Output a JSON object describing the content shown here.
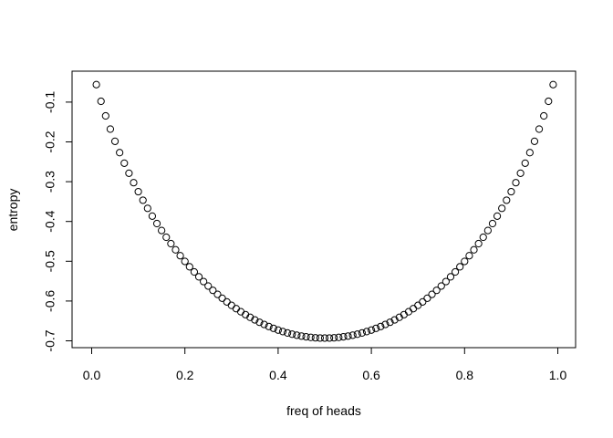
{
  "chart_data": {
    "type": "scatter",
    "title": "",
    "xlabel": "freq of heads",
    "ylabel": "entropy",
    "xlim": [
      0,
      1
    ],
    "ylim": [
      -0.7,
      -0.1
    ],
    "x_ticks": [
      "0.0",
      "0.2",
      "0.4",
      "0.6",
      "0.8",
      "1.0"
    ],
    "x_tick_values": [
      0,
      0.2,
      0.4,
      0.6,
      0.8,
      1.0
    ],
    "y_ticks": [
      "-0.7",
      "-0.6",
      "-0.5",
      "-0.4",
      "-0.3",
      "-0.2",
      "-0.1"
    ],
    "y_tick_values": [
      -0.7,
      -0.6,
      -0.5,
      -0.4,
      -0.3,
      -0.2,
      -0.1
    ],
    "grid": false,
    "marker": "open-circle",
    "point_color": "#000000",
    "series": [
      {
        "x": [
          0.01,
          0.02,
          0.03,
          0.04,
          0.05,
          0.06,
          0.07,
          0.08,
          0.09,
          0.1,
          0.11,
          0.12,
          0.13,
          0.14,
          0.15,
          0.16,
          0.17,
          0.18,
          0.19,
          0.2,
          0.21,
          0.22,
          0.23,
          0.24,
          0.25,
          0.26,
          0.27,
          0.28,
          0.29,
          0.3,
          0.31,
          0.32,
          0.33,
          0.34,
          0.35,
          0.36,
          0.37,
          0.38,
          0.39,
          0.4,
          0.41,
          0.42,
          0.43,
          0.44,
          0.45,
          0.46,
          0.47,
          0.48,
          0.49,
          0.5,
          0.51,
          0.52,
          0.53,
          0.54,
          0.55,
          0.56,
          0.57,
          0.58,
          0.59,
          0.6,
          0.61,
          0.62,
          0.63,
          0.64,
          0.65,
          0.66,
          0.67,
          0.68,
          0.69,
          0.7,
          0.71,
          0.72,
          0.73,
          0.74,
          0.75,
          0.76,
          0.77,
          0.78,
          0.79,
          0.8,
          0.81,
          0.82,
          0.83,
          0.84,
          0.85,
          0.86,
          0.87,
          0.88,
          0.89,
          0.9,
          0.91,
          0.92,
          0.93,
          0.94,
          0.95,
          0.96,
          0.97,
          0.98,
          0.99
        ],
        "y": [
          -0.056,
          -0.098,
          -0.1347,
          -0.1679,
          -0.1985,
          -0.227,
          -0.2536,
          -0.2788,
          -0.3025,
          -0.3251,
          -0.3466,
          -0.367,
          -0.3866,
          -0.4053,
          -0.4227,
          -0.4397,
          -0.4558,
          -0.4713,
          -0.4861,
          -0.5004,
          -0.514,
          -0.5269,
          -0.5392,
          -0.5511,
          -0.5623,
          -0.5731,
          -0.5833,
          -0.593,
          -0.6022,
          -0.6109,
          -0.6191,
          -0.6269,
          -0.6342,
          -0.641,
          -0.6474,
          -0.6534,
          -0.6589,
          -0.664,
          -0.6686,
          -0.673,
          -0.6768,
          -0.6803,
          -0.6834,
          -0.6859,
          -0.6881,
          -0.6899,
          -0.6914,
          -0.6924,
          -0.693,
          -0.6931,
          -0.693,
          -0.6924,
          -0.6914,
          -0.6899,
          -0.6881,
          -0.6859,
          -0.6834,
          -0.6803,
          -0.6768,
          -0.673,
          -0.6686,
          -0.664,
          -0.6589,
          -0.6534,
          -0.6474,
          -0.641,
          -0.6342,
          -0.6269,
          -0.6191,
          -0.6109,
          -0.6022,
          -0.593,
          -0.5833,
          -0.5731,
          -0.5623,
          -0.5511,
          -0.5392,
          -0.5269,
          -0.514,
          -0.5004,
          -0.4861,
          -0.4713,
          -0.4558,
          -0.4397,
          -0.4227,
          -0.4053,
          -0.3866,
          -0.367,
          -0.3466,
          -0.3251,
          -0.3025,
          -0.2788,
          -0.2536,
          -0.227,
          -0.1985,
          -0.1679,
          -0.1347,
          -0.098,
          -0.056
        ]
      }
    ]
  }
}
